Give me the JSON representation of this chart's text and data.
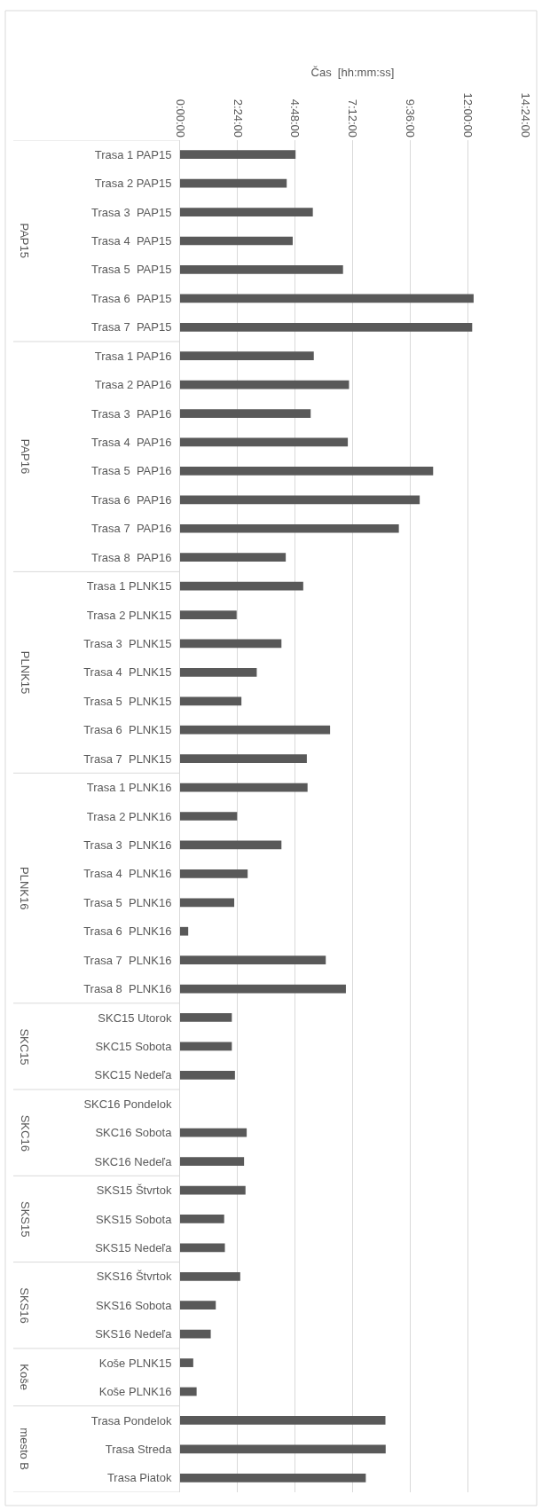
{
  "chart_data": {
    "type": "bar",
    "orientation": "horizontal",
    "xlabel": "Čas  [hh:mm:ss]",
    "categories": [
      "Trasa 1 PAP15",
      "Trasa 2 PAP15",
      "Trasa 3  PAP15",
      "Trasa 4  PAP15",
      "Trasa 5  PAP15",
      "Trasa 6  PAP15",
      "Trasa 7  PAP15",
      "Trasa 1 PAP16",
      "Trasa 2 PAP16",
      "Trasa 3  PAP16",
      "Trasa 4  PAP16",
      "Trasa 5  PAP16",
      "Trasa 6  PAP16",
      "Trasa 7  PAP16",
      "Trasa 8  PAP16",
      "Trasa 1 PLNK15",
      "Trasa 2 PLNK15",
      "Trasa 3  PLNK15",
      "Trasa 4  PLNK15",
      "Trasa 5  PLNK15",
      "Trasa 6  PLNK15",
      "Trasa 7  PLNK15",
      "Trasa 1 PLNK16",
      "Trasa 2 PLNK16",
      "Trasa 3  PLNK16",
      "Trasa 4  PLNK16",
      "Trasa 5  PLNK16",
      "Trasa 6  PLNK16",
      "Trasa 7  PLNK16",
      "Trasa 8  PLNK16",
      "SKC15 Utorok",
      "SKC15 Sobota",
      "SKC15 Nedeľa",
      "SKC16 Pondelok",
      "SKC16 Sobota",
      "SKC16 Nedeľa",
      "SKS15 Štvrtok",
      "SKS15 Sobota",
      "SKS15 Nedeľa",
      "SKS16 Štvrtok",
      "SKS16 Sobota",
      "SKS16 Nedeľa",
      "Koše PLNK15",
      "Koše PLNK16",
      "Trasa Pondelok",
      "Trasa Streda",
      "Trasa Piatok"
    ],
    "values": [
      4.82,
      4.45,
      5.54,
      4.7,
      6.8,
      12.25,
      12.19,
      5.58,
      7.05,
      5.45,
      7.0,
      10.56,
      10.0,
      9.13,
      4.41,
      5.14,
      2.36,
      4.23,
      3.2,
      2.56,
      6.26,
      5.29,
      5.32,
      2.38,
      4.23,
      2.82,
      2.26,
      0.34,
      6.08,
      6.92,
      2.16,
      2.16,
      2.29,
      null,
      2.78,
      2.67,
      2.73,
      1.84,
      1.87,
      2.51,
      1.49,
      1.28,
      0.55,
      0.69,
      8.57,
      8.58,
      7.75
    ],
    "color": "#595959",
    "xlim": [
      0,
      14.4
    ],
    "xticks": [
      {
        "value": 0,
        "label": "0:00:00"
      },
      {
        "value": 2.4,
        "label": "2:24:00"
      },
      {
        "value": 4.8,
        "label": "4:48:00"
      },
      {
        "value": 7.2,
        "label": "7:12:00"
      },
      {
        "value": 9.6,
        "label": "9:36:00"
      },
      {
        "value": 12,
        "label": "12:00:00"
      },
      {
        "value": 14.4,
        "label": "14:24:00"
      }
    ],
    "grid": "x",
    "legend": false,
    "annotations": [
      "PAP15",
      "PAP16",
      "PLNK15",
      "PLNK16",
      "SKC15",
      "SKC16",
      "SKS15",
      "SKS16",
      "Koše",
      "mesto B"
    ]
  }
}
